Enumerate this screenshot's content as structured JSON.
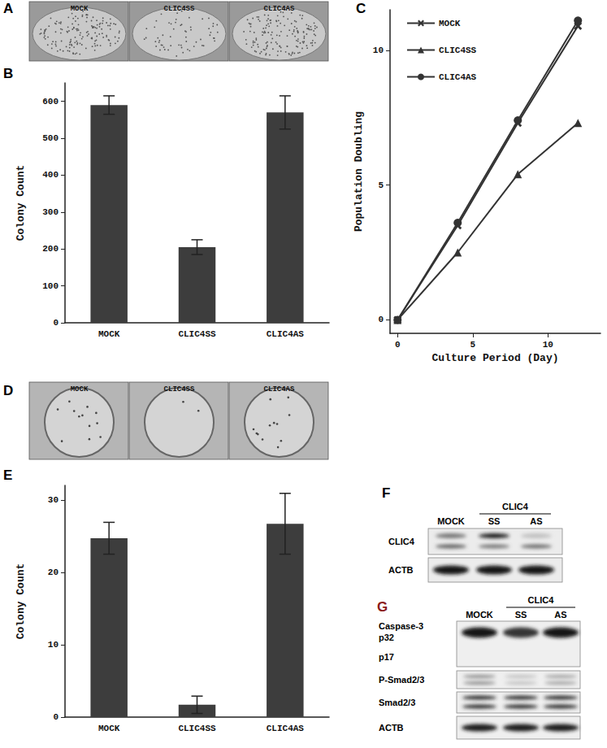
{
  "panels": {
    "A": {
      "panel": "A",
      "labels": [
        "MOCK",
        "CLIC4SS",
        "CLIC4AS"
      ]
    },
    "D": {
      "panel": "D",
      "labels": [
        "MOCK",
        "CLIC4SS",
        "CLIC4AS"
      ]
    },
    "F": {
      "panel": "F",
      "group": "CLIC4",
      "columns": [
        "MOCK",
        "SS",
        "AS"
      ],
      "rows": [
        "CLIC4",
        "ACTB"
      ]
    },
    "G": {
      "panel": "G",
      "color": "#8b1a1a",
      "group": "CLIC4",
      "columns": [
        "MOCK",
        "SS",
        "AS"
      ],
      "rows": [
        "Caspase-3",
        "p32",
        "p17",
        "P-Smad2/3",
        "Smad2/3",
        "ACTB"
      ]
    }
  },
  "chart_data": [
    {
      "panel": "B",
      "type": "bar",
      "categories": [
        "MOCK",
        "CLIC4SS",
        "CLIC4AS"
      ],
      "values": [
        590,
        205,
        570
      ],
      "errors": [
        25,
        20,
        45
      ],
      "y_label": "Colony Count",
      "ylim": [
        0,
        650
      ],
      "yticks": [
        0,
        100,
        200,
        300,
        400,
        500,
        600
      ],
      "color": "#3d3d3d",
      "grid": false
    },
    {
      "panel": "C",
      "type": "line",
      "x": [
        0,
        4,
        8,
        12
      ],
      "x_label": "Culture Period (Day)",
      "y_label": "Population Doubling",
      "series": [
        {
          "name": "MOCK",
          "color": "#333333",
          "marker": "cross",
          "values": [
            0,
            3.5,
            7.3,
            10.9
          ]
        },
        {
          "name": "CLIC4SS",
          "color": "#333333",
          "marker": "triangle",
          "values": [
            0,
            2.5,
            5.4,
            7.3
          ]
        },
        {
          "name": "CLIC4AS",
          "color": "#333333",
          "marker": "circle",
          "values": [
            0,
            3.6,
            7.4,
            11.1
          ]
        }
      ],
      "xlim": [
        -0.5,
        13.5
      ],
      "xticks": [
        0,
        5,
        10
      ],
      "ylim": [
        -0.5,
        11.5
      ],
      "yticks": [
        0,
        5,
        10
      ],
      "legend": "upper left",
      "grid": false
    },
    {
      "panel": "E",
      "type": "bar",
      "categories": [
        "MOCK",
        "CLIC4SS",
        "CLIC4AS"
      ],
      "values": [
        24.7,
        1.7,
        26.7
      ],
      "errors": [
        2.2,
        1.2,
        4.2
      ],
      "y_label": "Colony Count",
      "ylim": [
        0,
        32
      ],
      "yticks": [
        0,
        10,
        20,
        30
      ],
      "color": "#3d3d3d",
      "grid": false
    }
  ]
}
